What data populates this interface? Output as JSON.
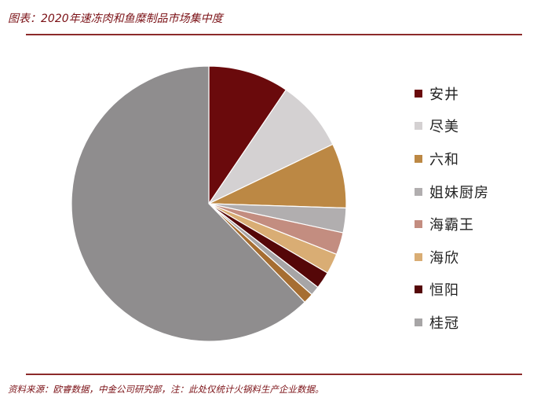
{
  "header": {
    "title": "图表：2020年速冻肉和鱼糜制品市场集中度"
  },
  "footer": {
    "source": "资料来源：欧睿数据，中金公司研究部，注：此处仅统计火锅料生产企业数据。"
  },
  "chart_data": {
    "type": "pie",
    "title": "2020年速冻肉和鱼糜制品市场集中度",
    "start_angle_deg": 0,
    "direction": "clockwise",
    "legend_position": "right",
    "slices": [
      {
        "label": "安井",
        "value": 9.5,
        "color": "#6a0a0c"
      },
      {
        "label": "尽美",
        "value": 8.4,
        "color": "#d4d1d2"
      },
      {
        "label": "六和",
        "value": 7.6,
        "color": "#bc8844"
      },
      {
        "label": "姐妹厨房",
        "value": 2.9,
        "color": "#b1aeaf"
      },
      {
        "label": "海霸王",
        "value": 2.6,
        "color": "#c38d80"
      },
      {
        "label": "海欣",
        "value": 2.4,
        "color": "#d9ad74"
      },
      {
        "label": "恒阳",
        "value": 2.0,
        "color": "#550708"
      },
      {
        "label": "桂冠",
        "value": 1.1,
        "color": "#a7a5a6"
      },
      {
        "label": "",
        "value": 1.2,
        "color": "#a66e32"
      },
      {
        "label": "",
        "value": 62.3,
        "color": "#8f8d8e"
      }
    ]
  }
}
